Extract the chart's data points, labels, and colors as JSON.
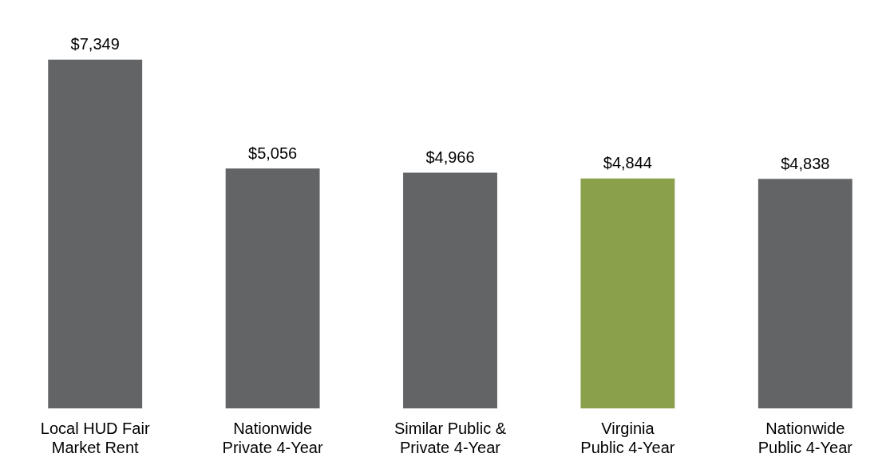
{
  "chart_data": {
    "type": "bar",
    "categories": [
      "Local HUD Fair Market Rent",
      "Nationwide Private 4-Year",
      "Similar Public & Private 4-Year",
      "Virginia Public 4-Year",
      "Nationwide Public 4-Year"
    ],
    "values": [
      7349,
      5056,
      4966,
      4844,
      4838
    ],
    "value_labels": [
      "$7,349",
      "$5,056",
      "$4,966",
      "$4,844",
      "$4,838"
    ],
    "colors": [
      "#636466",
      "#636466",
      "#636466",
      "#8aa04a",
      "#636466"
    ],
    "relative": false,
    "grid": false,
    "legend": false
  }
}
